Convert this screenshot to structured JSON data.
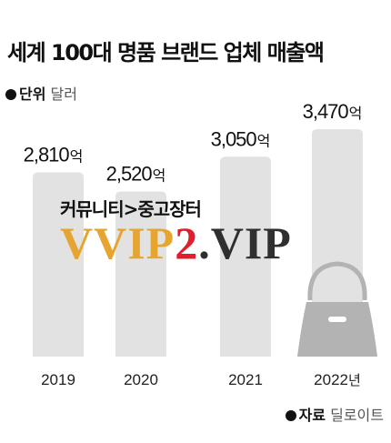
{
  "header": {
    "title": "세계 100대 명품 브랜드 업체 매출액",
    "unit_key": "단위",
    "unit_value": "달러"
  },
  "footer": {
    "source_key": "자료",
    "source_value": "딜로이트"
  },
  "watermark": {
    "top_text": "커뮤니티>중고장터",
    "part_a": "VVIP",
    "part_b": "2",
    "part_c": ".VIP"
  },
  "chart_data": {
    "type": "bar",
    "title": "세계 100대 명품 브랜드 업체 매출액",
    "unit": "억 달러",
    "categories": [
      "2019",
      "2020",
      "2021",
      "2022년"
    ],
    "values": [
      2810,
      2520,
      3050,
      3470
    ],
    "value_labels": [
      "2,810",
      "2,520",
      "3,050",
      "3,470"
    ],
    "value_suffix": "억",
    "bar_color": "#e2e2e2",
    "highlight_icon": "handbag-icon",
    "highlight_color": "#b3b3b3",
    "ylim": [
      0,
      3470
    ],
    "grid": false,
    "legend": "none"
  }
}
